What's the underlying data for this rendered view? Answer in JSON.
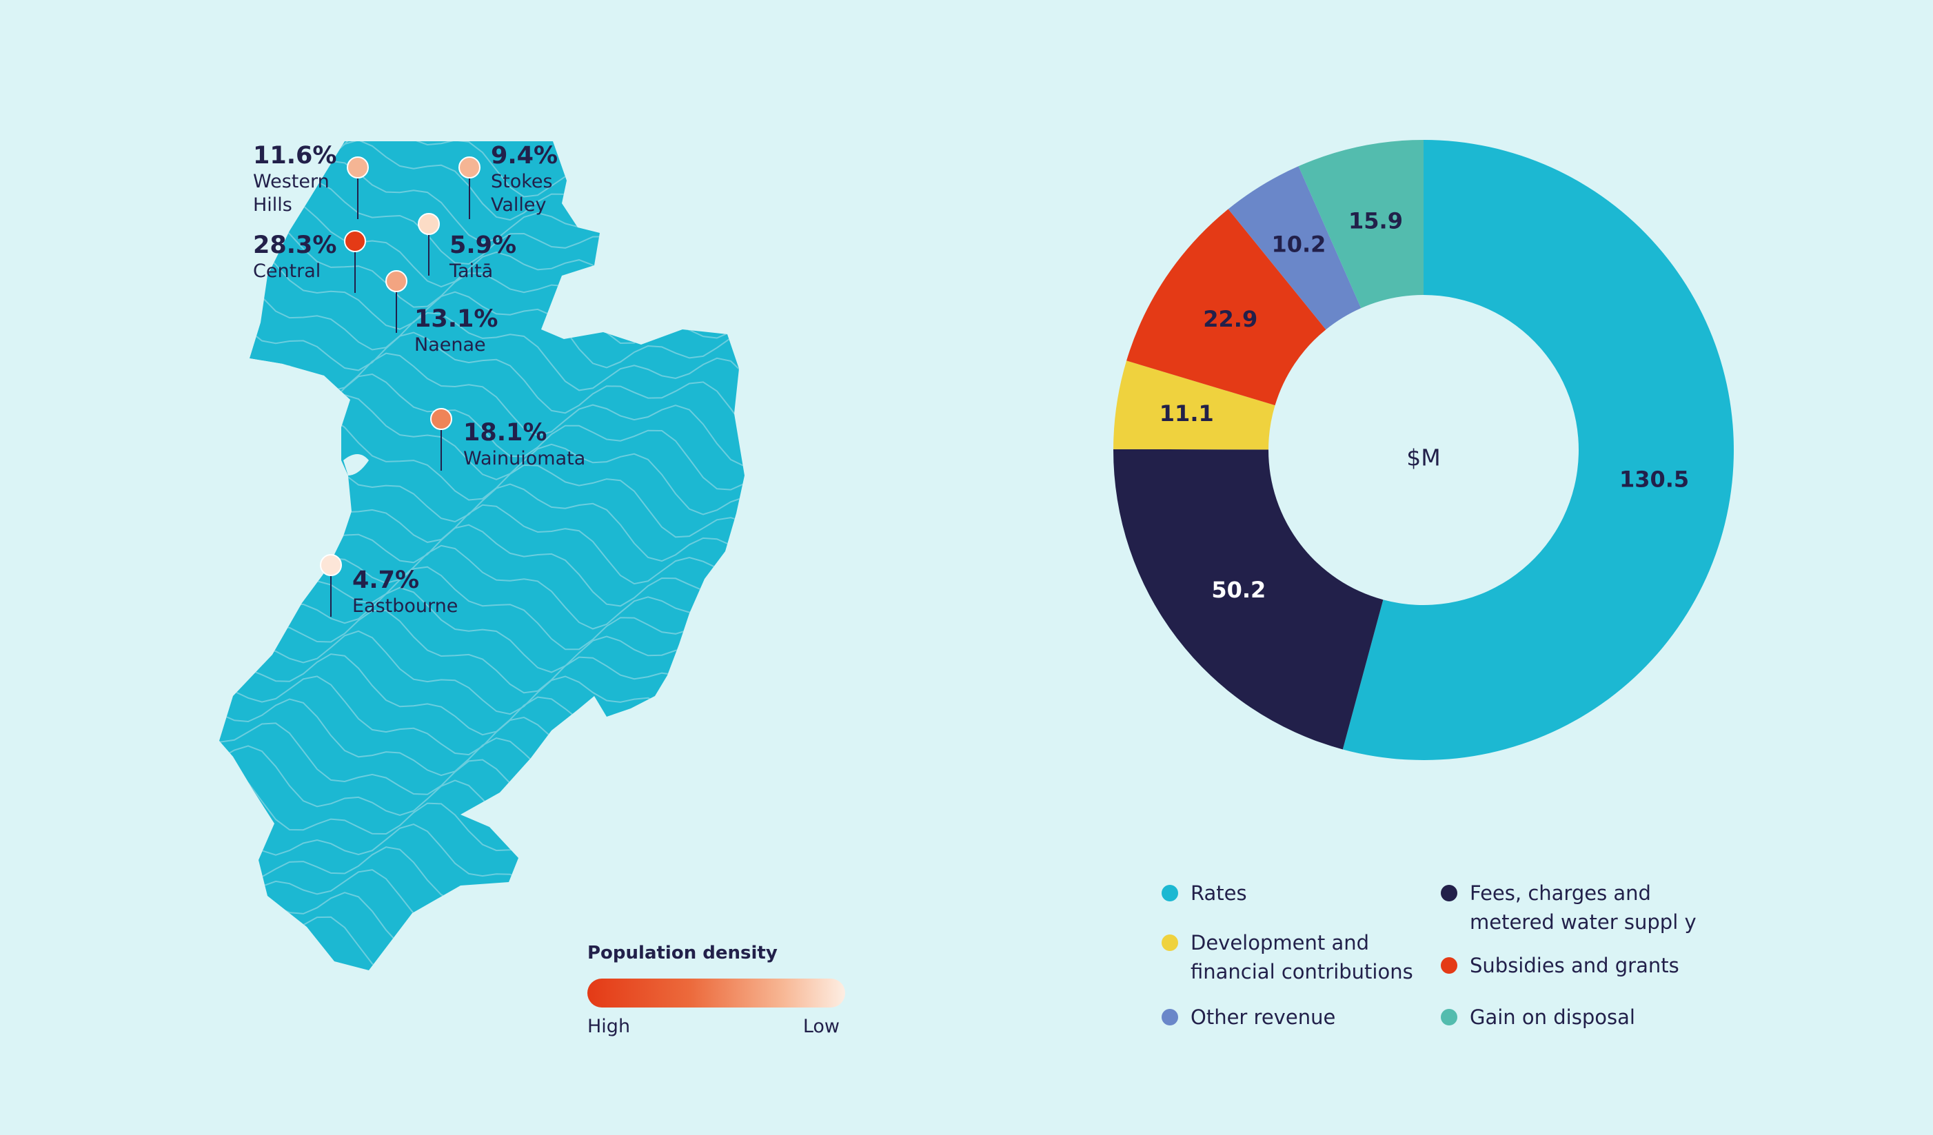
{
  "density_legend": {
    "title": "Population density",
    "high_label": "High",
    "low_label": "Low",
    "gradient_colors": [
      "#e43a16",
      "#fdeee3"
    ]
  },
  "map": {
    "fill_color": "#1cb8d2",
    "suburbs": [
      {
        "pct": "11.6%",
        "name": "Western\nHills",
        "pin_color": "#f5b594"
      },
      {
        "pct": "9.4%",
        "name": "Stokes\nValley",
        "pin_color": "#f5b594"
      },
      {
        "pct": "28.3%",
        "name": "Central",
        "pin_color": "#e43a16"
      },
      {
        "pct": "5.9%",
        "name": "Taitā",
        "pin_color": "#fcdcc6"
      },
      {
        "pct": "13.1%",
        "name": "Naenae",
        "pin_color": "#f3a481"
      },
      {
        "pct": "18.1%",
        "name": "Wainuiomata",
        "pin_color": "#ef8458"
      },
      {
        "pct": "4.7%",
        "name": "Eastbourne",
        "pin_color": "#fde6d8"
      }
    ]
  },
  "chart_data": {
    "type": "pie",
    "variant": "donut",
    "center_label": "$M",
    "unit": "$M",
    "categories": [
      "Rates",
      "Fees, charges and metered water supply",
      "Development and financial contributions",
      "Subsidies and grants",
      "Other revenue",
      "Gain on disposal"
    ],
    "values": [
      130.5,
      50.2,
      11.1,
      22.9,
      10.2,
      15.9
    ],
    "slice_order_clockwise_from_top": [
      "Rates",
      "Fees, charges and metered water supply",
      "Development and financial contributions",
      "Subsidies and grants",
      "Other revenue",
      "Gain on disposal"
    ],
    "colors": [
      "#1cb8d2",
      "#22204a",
      "#efd23e",
      "#e43a16",
      "#6a87c9",
      "#53bcae"
    ],
    "label_colors": [
      "#22204a",
      "#ffffff",
      "#22204a",
      "#22204a",
      "#22204a",
      "#22204a"
    ],
    "legend": [
      {
        "label": "Rates",
        "color": "#1cb8d2"
      },
      {
        "label": "Fees, charges and\nmetered water suppl y",
        "color": "#22204a"
      },
      {
        "label": "Development and\nfinancial contributions",
        "color": "#efd23e"
      },
      {
        "label": "Subsidies and grants",
        "color": "#e43a16"
      },
      {
        "label": "Other revenue",
        "color": "#6a87c9"
      },
      {
        "label": "Gain on disposal",
        "color": "#53bcae"
      }
    ]
  }
}
